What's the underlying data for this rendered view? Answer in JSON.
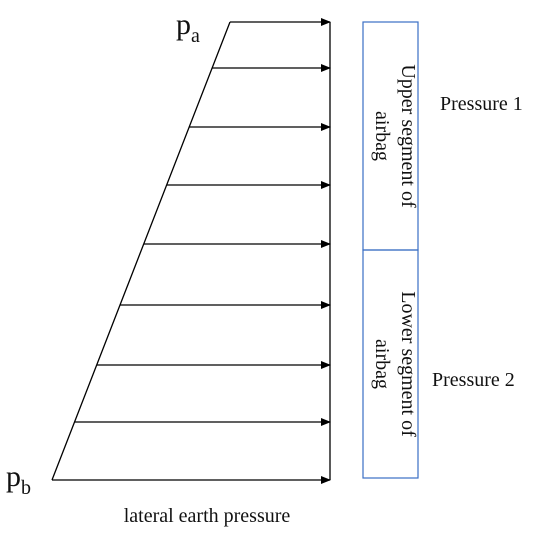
{
  "labels": {
    "top_pressure": {
      "base": "p",
      "sub": "a"
    },
    "bottom_pressure": {
      "base": "p",
      "sub": "b"
    },
    "axis_caption": "lateral earth pressure"
  },
  "segments": [
    {
      "lines": [
        "Upper segment of",
        "airbag"
      ],
      "pressure": "Pressure 1"
    },
    {
      "lines": [
        "Lower segment of",
        "airbag"
      ],
      "pressure": "Pressure 2"
    }
  ]
}
